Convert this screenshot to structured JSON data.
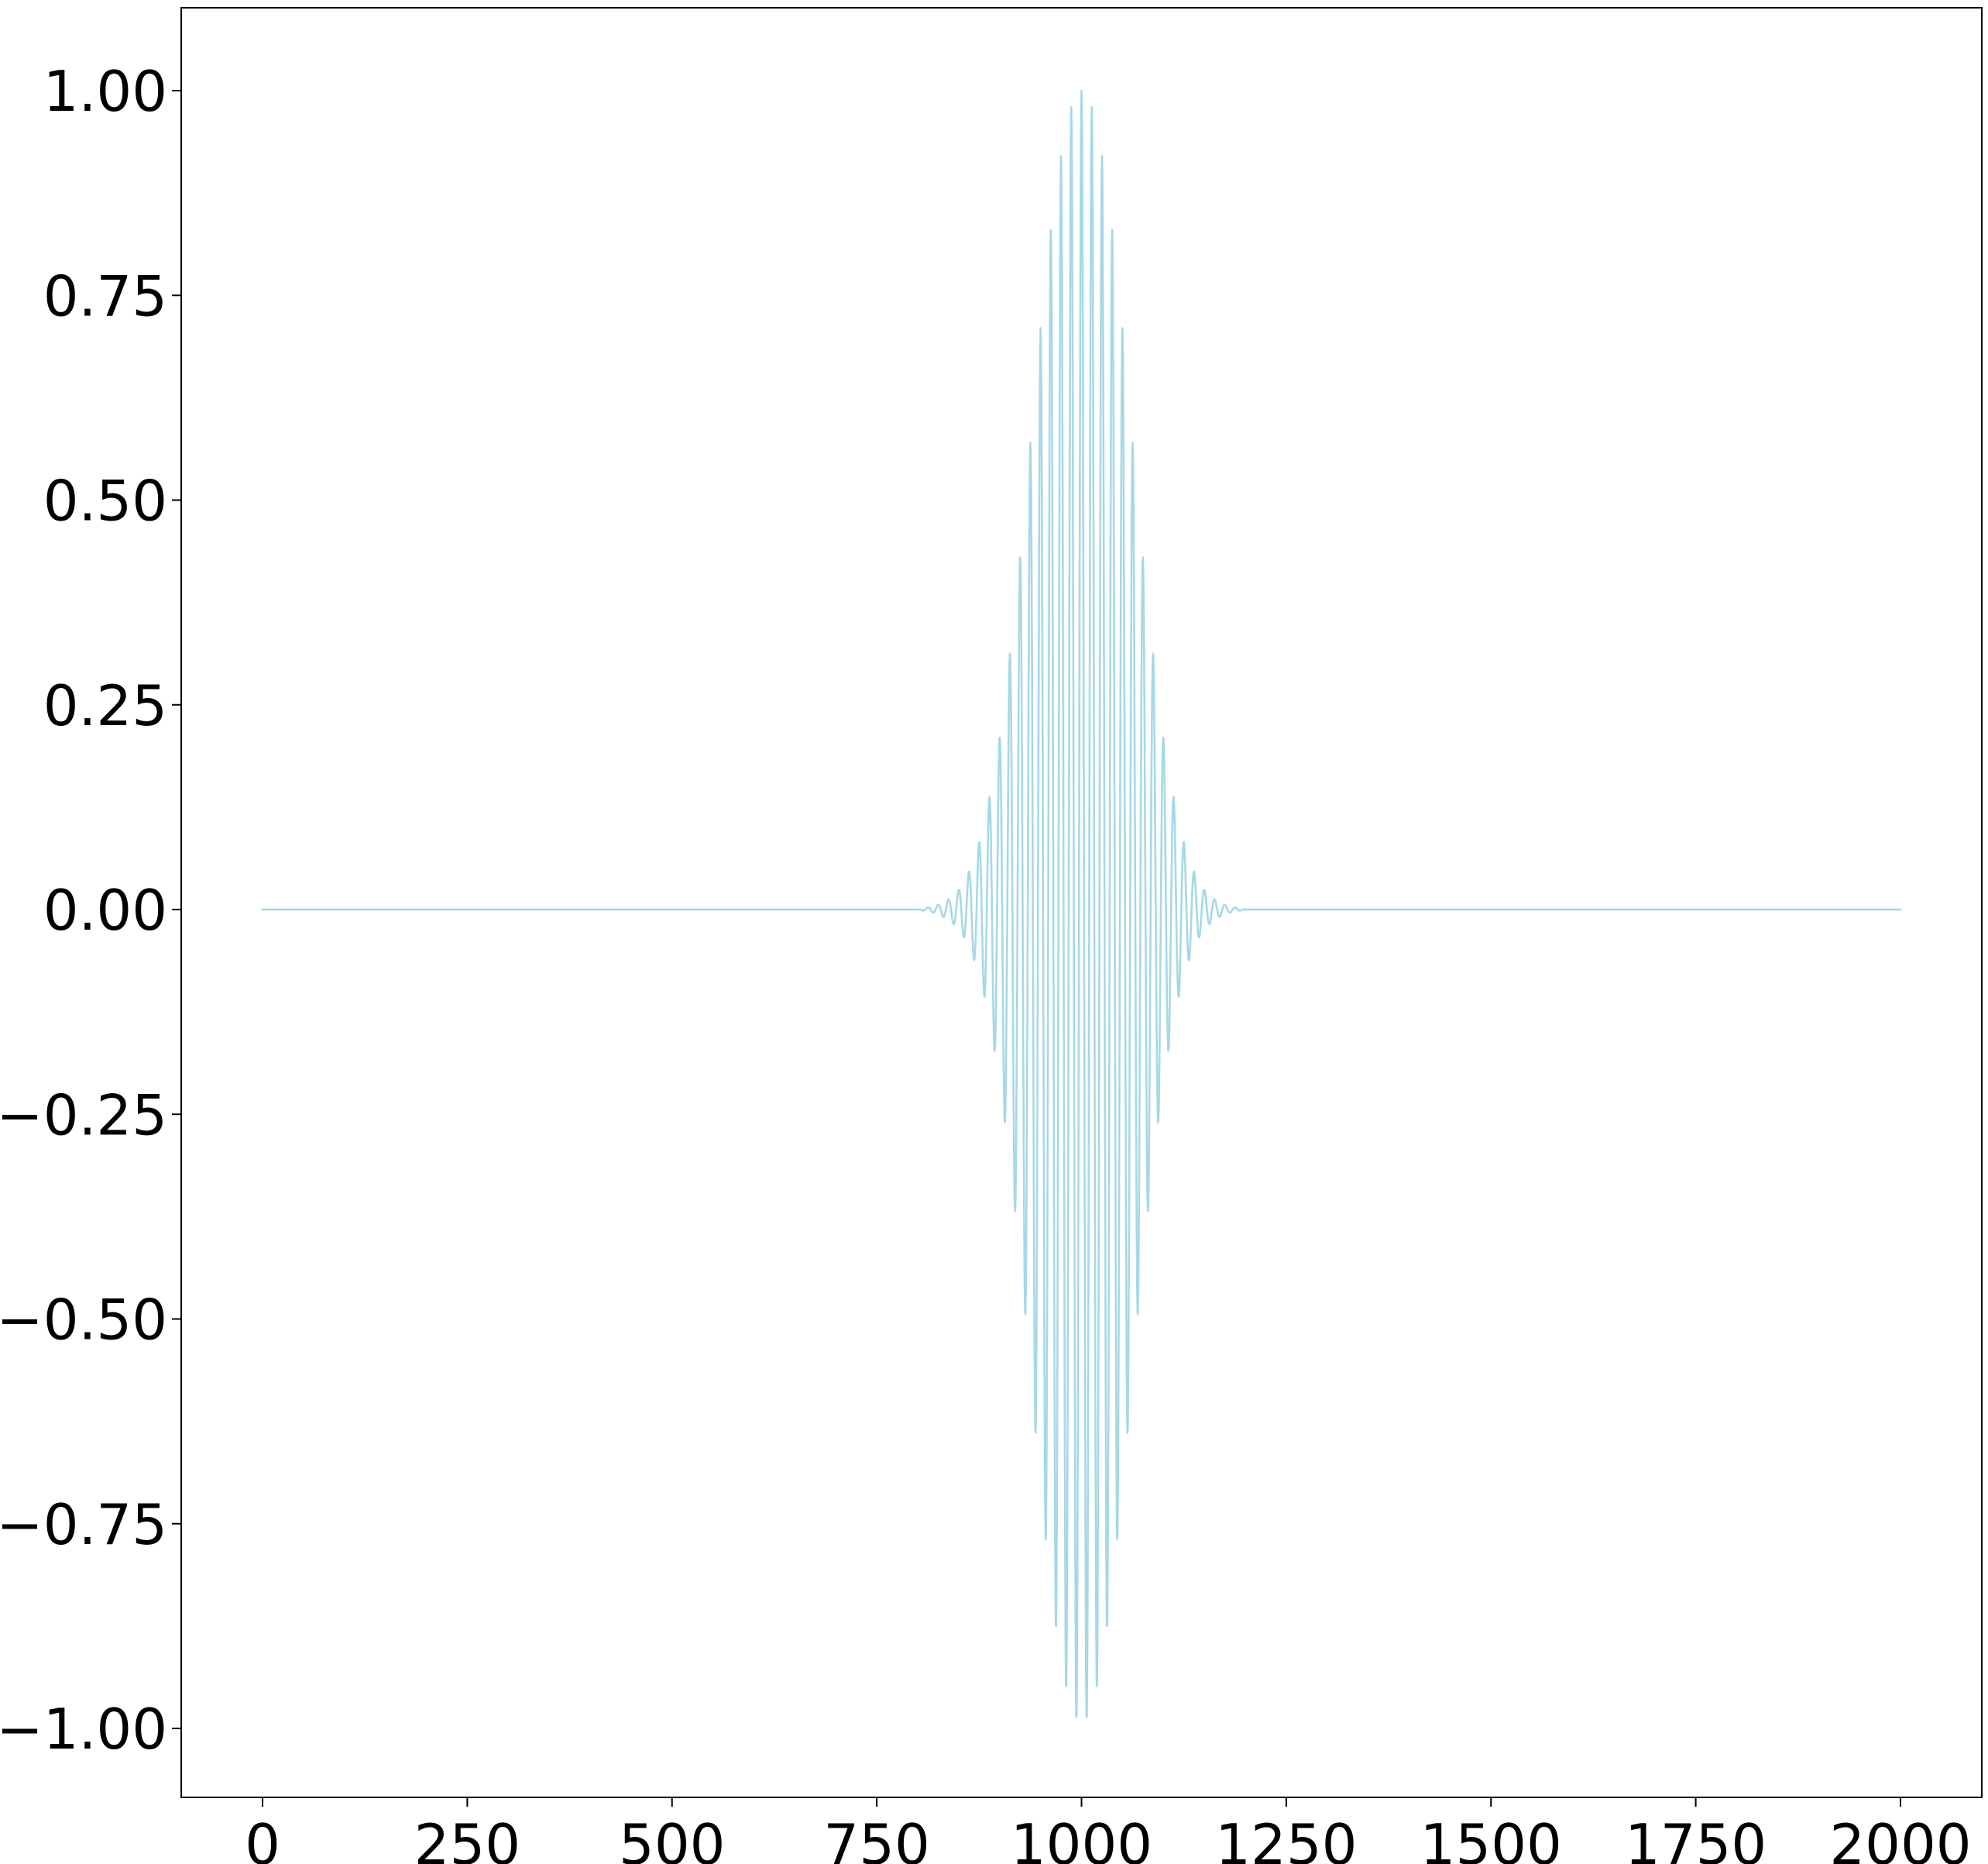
{
  "chart_data": {
    "type": "line",
    "title": "",
    "xlabel": "",
    "ylabel": "",
    "xlim": [
      -100,
      2100
    ],
    "ylim": [
      -1.09,
      1.1
    ],
    "grid": false,
    "legend": "none",
    "x_ticks": [
      {
        "value": 0,
        "label": "0"
      },
      {
        "value": 250,
        "label": "250"
      },
      {
        "value": 500,
        "label": "500"
      },
      {
        "value": 750,
        "label": "750"
      },
      {
        "value": 1000,
        "label": "1000"
      },
      {
        "value": 1250,
        "label": "1250"
      },
      {
        "value": 1500,
        "label": "1500"
      },
      {
        "value": 1750,
        "label": "1750"
      },
      {
        "value": 2000,
        "label": "2000"
      }
    ],
    "y_ticks": [
      {
        "value": 1.0,
        "label": "1.00"
      },
      {
        "value": 0.75,
        "label": "0.75"
      },
      {
        "value": 0.5,
        "label": "0.50"
      },
      {
        "value": 0.25,
        "label": "0.25"
      },
      {
        "value": 0.0,
        "label": "0.00"
      },
      {
        "value": -0.25,
        "label": "−0.25"
      },
      {
        "value": -0.5,
        "label": "−0.50"
      },
      {
        "value": -0.75,
        "label": "−0.75"
      },
      {
        "value": -1.0,
        "label": "−1.00"
      }
    ],
    "series": [
      {
        "color": "#a6d8e6",
        "x_start": 0,
        "x_end": 2000,
        "description_of_shape": "Gaussian-modulated cosine (wave packet) centered near x=1000",
        "x": [
          0,
          800,
          810,
          820,
          830,
          840,
          850,
          860,
          870,
          880,
          890,
          900,
          910,
          920,
          930,
          940,
          950,
          960,
          970,
          980,
          990,
          1000,
          1010,
          1020,
          1030,
          1040,
          1050,
          1060,
          1070,
          1080,
          1090,
          1100,
          1110,
          1120,
          1130,
          1140,
          1150,
          1160,
          1170,
          1180,
          1190,
          1200,
          2000
        ],
        "y": [
          0.0,
          0.0,
          0.002,
          0.004,
          0.008,
          0.014,
          0.024,
          0.04,
          0.065,
          0.1,
          0.15,
          0.21,
          0.29,
          0.38,
          0.48,
          0.6,
          0.71,
          0.81,
          0.89,
          0.95,
          0.99,
          1.0,
          0.99,
          0.95,
          0.89,
          0.81,
          0.71,
          0.6,
          0.48,
          0.38,
          0.29,
          0.21,
          0.15,
          0.1,
          0.065,
          0.04,
          0.024,
          0.014,
          0.008,
          0.004,
          0.002,
          0.0,
          0.0
        ],
        "carrier_period": 12.5
      }
    ]
  }
}
